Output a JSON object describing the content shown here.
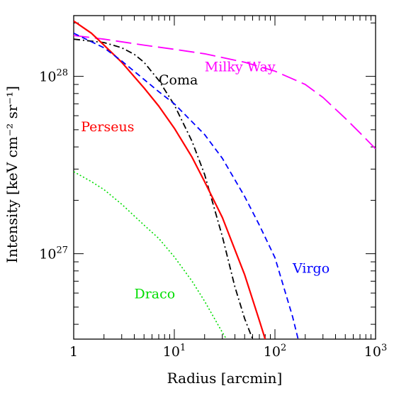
{
  "chart_data": {
    "type": "line",
    "title": "",
    "xlabel": "Radius [arcmin]",
    "ylabel": "Intensity [keV cm⁻² sr⁻¹]",
    "xscale": "log",
    "yscale": "log",
    "xlim": [
      1,
      1000
    ],
    "ylim": [
      3.3e+26,
      2.2e+28
    ],
    "grid": false,
    "legend": "none",
    "x_ticks": [
      {
        "value": 1,
        "base": "1",
        "exp": ""
      },
      {
        "value": 10,
        "base": "10",
        "exp": "1"
      },
      {
        "value": 100,
        "base": "10",
        "exp": "2"
      },
      {
        "value": 1000,
        "base": "10",
        "exp": "3"
      }
    ],
    "y_ticks": [
      {
        "value": 1e+27,
        "base": "10",
        "exp": "27"
      },
      {
        "value": 1e+28,
        "base": "10",
        "exp": "28"
      }
    ],
    "series": [
      {
        "name": "Milky Way",
        "color": "#ff00ff",
        "dash": "long-dash",
        "label_x": 20,
        "label_y": 1.07e+28,
        "x": [
          1,
          2,
          5,
          10,
          20,
          50,
          100,
          200,
          300,
          500,
          700,
          1000
        ],
        "y": [
          1.7e+28,
          1.62e+28,
          1.5e+28,
          1.42e+28,
          1.34e+28,
          1.2e+28,
          1.07e+28,
          9e+27,
          7.6e+27,
          5.8e+27,
          4.8e+27,
          3.9e+27
        ]
      },
      {
        "name": "Coma",
        "color": "#000000",
        "dash": "dash-dot",
        "label_x": 7,
        "label_y": 9e+27,
        "x": [
          1,
          2,
          3,
          4,
          5,
          7,
          10,
          15,
          20,
          30,
          40,
          50,
          60
        ],
        "y": [
          1.62e+28,
          1.55e+28,
          1.45e+28,
          1.33e+28,
          1.2e+28,
          9.5e+27,
          6.9e+27,
          4.3e+27,
          2.8e+27,
          1.25e+27,
          6.5e+26,
          4.3e+26,
          3.3e+26
        ]
      },
      {
        "name": "Perseus",
        "color": "#ff0000",
        "dash": "solid",
        "label_x": 1.18,
        "label_y": 4.9e+27,
        "x": [
          1,
          1.5,
          2,
          3,
          5,
          7,
          10,
          15,
          20,
          30,
          50,
          70,
          80
        ],
        "y": [
          2.05e+28,
          1.75e+28,
          1.5e+28,
          1.2e+28,
          8.6e+27,
          6.8e+27,
          5.1e+27,
          3.5e+27,
          2.55e+27,
          1.6e+27,
          7.6e+26,
          4.2e+26,
          3.3e+26
        ]
      },
      {
        "name": "Virgo",
        "color": "#0000ff",
        "dash": "short-dash",
        "label_x": 150,
        "label_y": 7.8e+26,
        "x": [
          1,
          2,
          3,
          5,
          7,
          10,
          20,
          30,
          50,
          70,
          100,
          150,
          170
        ],
        "y": [
          1.75e+28,
          1.45e+28,
          1.22e+28,
          9.6e+27,
          8.2e+27,
          7e+27,
          4.7e+27,
          3.45e+27,
          2.1e+27,
          1.45e+27,
          9.5e+26,
          4.4e+26,
          3.3e+26
        ]
      },
      {
        "name": "Draco",
        "color": "#00dd00",
        "dash": "dotted",
        "label_x": 4,
        "label_y": 5.6e+26,
        "x": [
          1,
          1.5,
          2,
          3,
          5,
          7,
          10,
          15,
          20,
          30,
          33
        ],
        "y": [
          2.9e+27,
          2.55e+27,
          2.3e+27,
          1.9e+27,
          1.45e+27,
          1.22e+27,
          9.6e+26,
          7e+26,
          5.4e+26,
          3.6e+26,
          3.3e+26
        ]
      }
    ]
  }
}
